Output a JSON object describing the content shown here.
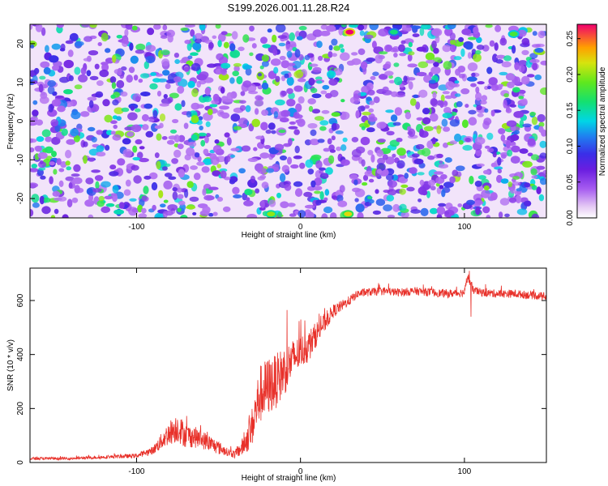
{
  "title": "S199.2026.001.11.28.R24",
  "chart_data": [
    {
      "type": "heatmap",
      "name": "spectrogram",
      "xlabel": "Height of straight line (km)",
      "ylabel": "Frequency (Hz)",
      "xlim": [
        -165,
        150
      ],
      "ylim": [
        -25,
        25
      ],
      "x_ticks": [
        -100,
        0,
        100
      ],
      "x_tick_labels": [
        "-100",
        "0",
        "100"
      ],
      "y_ticks": [
        -20,
        -10,
        0,
        10,
        20
      ],
      "y_tick_labels": [
        "-20",
        "-10",
        "0",
        "10",
        "20"
      ],
      "colorbar": {
        "label": "Normalized spectral amplitude",
        "range": [
          0.0,
          0.27
        ],
        "ticks": [
          0.0,
          0.05,
          0.1,
          0.15,
          0.2,
          0.25
        ],
        "tick_labels": [
          "0.00",
          "0.05",
          "0.10",
          "0.15",
          "0.20",
          "0.25"
        ]
      },
      "features": {
        "gap_x_km": 30,
        "hot_spots": [
          {
            "x": 30,
            "y": 23,
            "value": 0.27
          },
          {
            "x": 29,
            "y": -24,
            "value": 0.22
          },
          {
            "x": -18,
            "y": -24,
            "value": 0.2
          },
          {
            "x": 130,
            "y": 22.5,
            "value": 0.18
          },
          {
            "x": 57,
            "y": 23,
            "value": 0.16
          }
        ]
      }
    },
    {
      "type": "line",
      "name": "snr",
      "xlabel": "Height of straight line (km)",
      "ylabel": "SNR (10 * v/v)",
      "xlim": [
        -165,
        150
      ],
      "ylim": [
        0,
        720
      ],
      "x_ticks": [
        -100,
        0,
        100
      ],
      "x_tick_labels": [
        "-100",
        "0",
        "100"
      ],
      "y_ticks": [
        0,
        200,
        400,
        600
      ],
      "y_tick_labels": [
        "0",
        "200",
        "400",
        "600"
      ],
      "color": "#e8312a",
      "series": [
        {
          "name": "SNR",
          "x": [
            -165,
            -140,
            -120,
            -100,
            -90,
            -80,
            -75,
            -70,
            -65,
            -60,
            -55,
            -50,
            -45,
            -40,
            -35,
            -30,
            -25,
            -20,
            -15,
            -10,
            -5,
            0,
            5,
            10,
            15,
            20,
            25,
            30,
            35,
            40,
            50,
            60,
            70,
            80,
            90,
            100,
            102,
            105,
            110,
            120,
            130,
            140,
            150
          ],
          "y": [
            15,
            15,
            20,
            25,
            45,
            110,
            130,
            100,
            95,
            85,
            70,
            55,
            40,
            30,
            60,
            120,
            250,
            280,
            300,
            340,
            380,
            410,
            430,
            480,
            520,
            560,
            580,
            600,
            625,
            630,
            635,
            630,
            635,
            630,
            625,
            630,
            690,
            640,
            630,
            625,
            625,
            620,
            615
          ],
          "noise": [
            5,
            5,
            6,
            8,
            15,
            45,
            55,
            45,
            40,
            35,
            30,
            25,
            15,
            15,
            35,
            70,
            110,
            110,
            100,
            95,
            75,
            60,
            60,
            45,
            35,
            25,
            20,
            18,
            15,
            15,
            15,
            15,
            15,
            15,
            15,
            15,
            15,
            15,
            15,
            15,
            15,
            15,
            15
          ]
        }
      ],
      "annotations": [
        {
          "x": 103,
          "y": 710,
          "label": "spike"
        },
        {
          "x": 104,
          "y": 540,
          "label": "dip"
        }
      ]
    }
  ]
}
